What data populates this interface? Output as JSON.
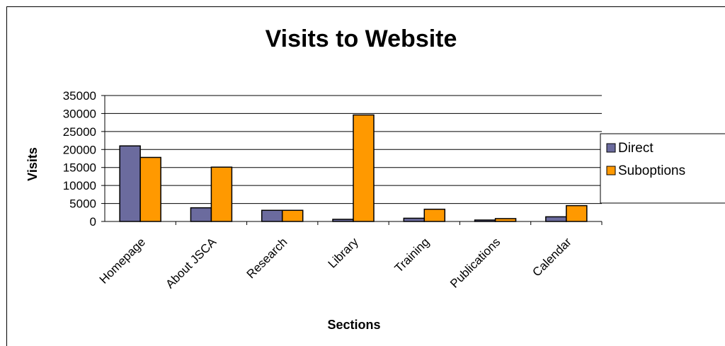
{
  "chart_data": {
    "type": "bar",
    "title": "Visits to Website",
    "xlabel": "Sections",
    "ylabel": "Visits",
    "categories": [
      "Homepage",
      "About JSCA",
      "Research",
      "Library",
      "Training",
      "Publications",
      "Calendar"
    ],
    "series": [
      {
        "name": "Direct",
        "color": "#6b6b9e",
        "values": [
          21000,
          3800,
          3100,
          600,
          900,
          400,
          1300
        ]
      },
      {
        "name": "Suboptions",
        "color": "#ff9900",
        "values": [
          17800,
          15100,
          3100,
          29600,
          3400,
          800,
          4400
        ]
      }
    ],
    "yticks": [
      "0",
      "5000",
      "10000",
      "15000",
      "20000",
      "25000",
      "30000",
      "35000"
    ],
    "ylim": [
      0,
      35000
    ],
    "grid": "horizontal",
    "legend": "right"
  }
}
